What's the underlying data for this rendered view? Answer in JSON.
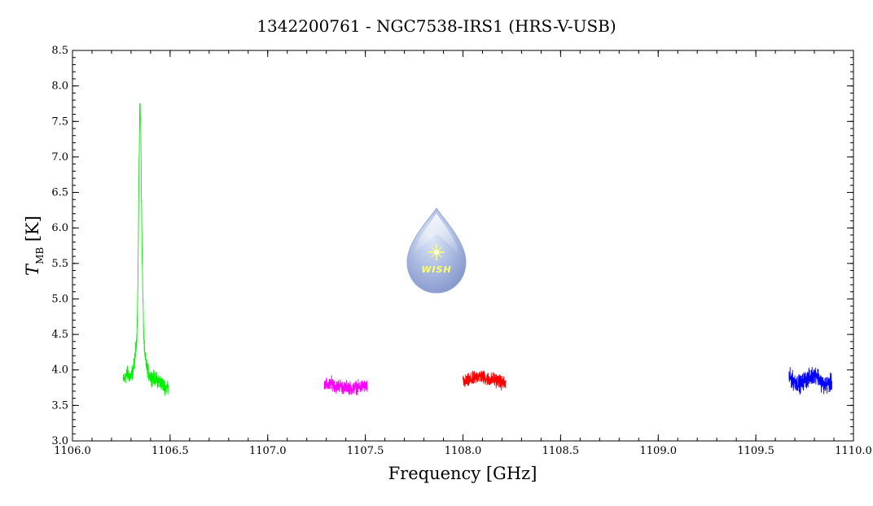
{
  "chart_data": {
    "type": "line",
    "title": "1342200761 - NGC7538-IRS1 (HRS-V-USB)",
    "xlabel": "Frequency [GHz]",
    "ylabel_main": "T",
    "ylabel_sub": "MB",
    "ylabel_unit": " [K]",
    "xlim": [
      1106.0,
      1110.0
    ],
    "ylim": [
      3.0,
      8.5
    ],
    "x_ticks": [
      "1106.0",
      "1106.5",
      "1107.0",
      "1107.5",
      "1108.0",
      "1108.5",
      "1109.0",
      "1109.5",
      "1110.0"
    ],
    "y_ticks": [
      "3.0",
      "3.5",
      "4.0",
      "4.5",
      "5.0",
      "5.5",
      "6.0",
      "6.5",
      "7.0",
      "7.5",
      "8.0",
      "8.5"
    ],
    "grid": false,
    "logo_text": "WISH",
    "series": [
      {
        "color": "#00ee00",
        "x": [
          1106.26,
          1106.28,
          1106.3,
          1106.31,
          1106.32,
          1106.33,
          1106.335,
          1106.34,
          1106.345,
          1106.35,
          1106.355,
          1106.36,
          1106.365,
          1106.37,
          1106.38,
          1106.39,
          1106.4,
          1106.42,
          1106.44,
          1106.46,
          1106.48,
          1106.49
        ],
        "y": [
          3.85,
          3.95,
          3.9,
          4.0,
          4.15,
          4.5,
          5.2,
          6.6,
          7.8,
          7.4,
          6.0,
          5.1,
          4.5,
          4.2,
          4.05,
          3.95,
          3.9,
          3.88,
          3.85,
          3.8,
          3.75,
          3.78
        ]
      },
      {
        "color": "#ff00ff",
        "x": [
          1107.29,
          1107.31,
          1107.33,
          1107.35,
          1107.37,
          1107.39,
          1107.41,
          1107.43,
          1107.45,
          1107.47,
          1107.49,
          1107.51
        ],
        "y": [
          3.8,
          3.78,
          3.82,
          3.76,
          3.79,
          3.74,
          3.77,
          3.73,
          3.76,
          3.75,
          3.78,
          3.76
        ]
      },
      {
        "color": "#ff0000",
        "x": [
          1108.0,
          1108.02,
          1108.04,
          1108.06,
          1108.08,
          1108.1,
          1108.12,
          1108.14,
          1108.16,
          1108.18,
          1108.2,
          1108.22
        ],
        "y": [
          3.82,
          3.84,
          3.86,
          3.88,
          3.92,
          3.9,
          3.88,
          3.86,
          3.87,
          3.85,
          3.82,
          3.8
        ]
      },
      {
        "color": "#0000ff",
        "x": [
          1109.67,
          1109.69,
          1109.71,
          1109.73,
          1109.75,
          1109.77,
          1109.79,
          1109.81,
          1109.83,
          1109.85,
          1109.87,
          1109.89
        ],
        "y": [
          3.9,
          3.85,
          3.82,
          3.8,
          3.86,
          3.88,
          3.92,
          3.95,
          3.85,
          3.78,
          3.8,
          3.82
        ]
      }
    ]
  }
}
